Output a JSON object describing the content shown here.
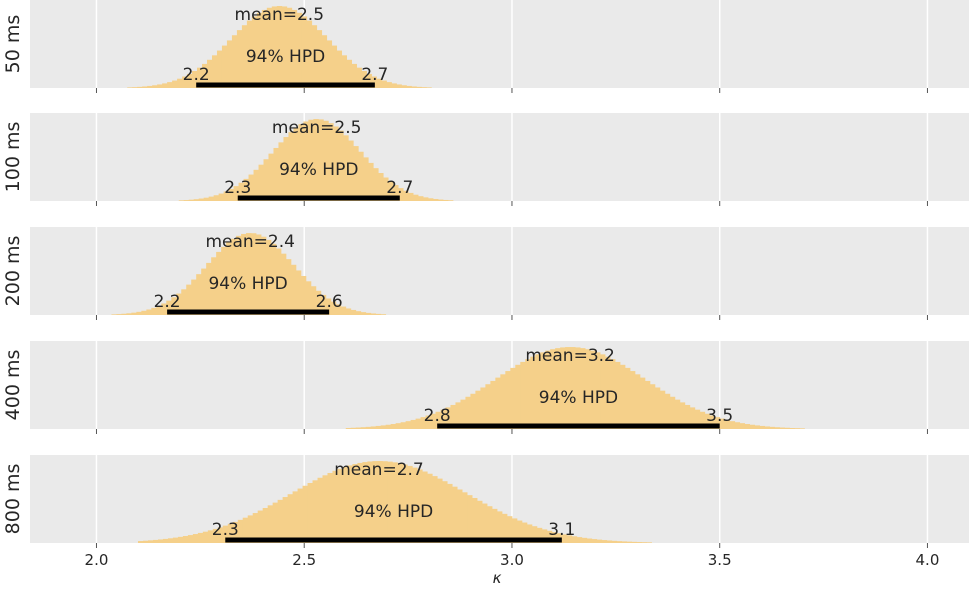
{
  "colors": {
    "panel_bg": "#eaeaea",
    "grid": "#ffffff",
    "bar": "#f5d08a",
    "hpd_bar": "#000000",
    "text": "#262626",
    "tick": "#555555"
  },
  "chart_data": {
    "type": "histogram",
    "xlabel": "κ",
    "xlim": [
      1.84,
      4.1
    ],
    "xticks": [
      2.0,
      2.5,
      3.0,
      3.5,
      4.0
    ],
    "xtick_labels": [
      "2.0",
      "2.5",
      "3.0",
      "3.5",
      "4.0"
    ],
    "grid": true,
    "panels": [
      {
        "label": "50 ms",
        "mean_label": "mean=2.5",
        "hpd_text": "94% HPD",
        "hpd_low": 2.24,
        "hpd_high": 2.67,
        "hpd_low_label": "2.2",
        "hpd_high_label": "2.7",
        "mode": 2.44,
        "sd": 0.115,
        "dist_min": 2.05,
        "dist_max": 2.95
      },
      {
        "label": "100 ms",
        "mean_label": "mean=2.5",
        "hpd_text": "94% HPD",
        "hpd_low": 2.34,
        "hpd_high": 2.73,
        "hpd_low_label": "2.3",
        "hpd_high_label": "2.7",
        "mode": 2.53,
        "sd": 0.105,
        "dist_min": 2.15,
        "dist_max": 2.95
      },
      {
        "label": "200 ms",
        "mean_label": "mean=2.4",
        "hpd_text": "94% HPD",
        "hpd_low": 2.17,
        "hpd_high": 2.56,
        "hpd_low_label": "2.2",
        "hpd_high_label": "2.6",
        "mode": 2.37,
        "sd": 0.105,
        "dist_min": 2.0,
        "dist_max": 2.8
      },
      {
        "label": "400 ms",
        "mean_label": "mean=3.2",
        "hpd_text": "94% HPD",
        "hpd_low": 2.82,
        "hpd_high": 3.5,
        "hpd_low_label": "2.8",
        "hpd_high_label": "3.5",
        "mode": 3.14,
        "sd": 0.18,
        "dist_min": 2.6,
        "dist_max": 4.0
      },
      {
        "label": "800 ms",
        "mean_label": "mean=2.7",
        "hpd_text": "94% HPD",
        "hpd_low": 2.31,
        "hpd_high": 3.12,
        "hpd_low_label": "2.3",
        "hpd_high_label": "3.1",
        "mode": 2.68,
        "sd": 0.21,
        "dist_min": 2.1,
        "dist_max": 3.4
      }
    ]
  }
}
